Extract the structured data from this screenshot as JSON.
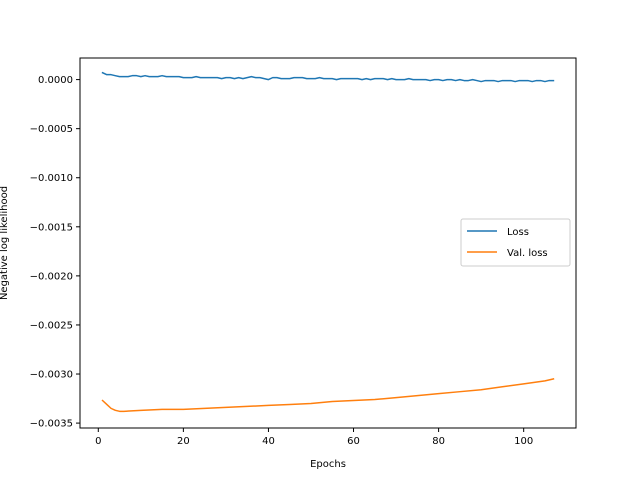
{
  "chart_data": {
    "type": "line",
    "title": "",
    "xlabel": "Epochs",
    "ylabel": "Negative log likelihood",
    "xlim": [
      -4.3,
      112.3
    ],
    "ylim": [
      -0.00355,
      0.00022
    ],
    "xticks": [
      0,
      20,
      40,
      60,
      80,
      100
    ],
    "xtick_labels": [
      "0",
      "20",
      "40",
      "60",
      "80",
      "100"
    ],
    "yticks": [
      0.0,
      -0.0005,
      -0.001,
      -0.0015,
      -0.002,
      -0.0025,
      -0.003,
      -0.0035
    ],
    "ytick_labels": [
      "0.0000",
      "−0.0005",
      "−0.0010",
      "−0.0015",
      "−0.0020",
      "−0.0025",
      "−0.0030",
      "−0.0035"
    ],
    "grid": false,
    "legend": {
      "position": "center-right",
      "entries": [
        "Loss",
        "Val. loss"
      ]
    },
    "series": [
      {
        "name": "Loss",
        "color": "#1f77b4",
        "x": [
          1,
          2,
          3,
          4,
          5,
          6,
          7,
          8,
          9,
          10,
          11,
          12,
          13,
          14,
          15,
          16,
          17,
          18,
          19,
          20,
          21,
          22,
          23,
          24,
          25,
          26,
          27,
          28,
          29,
          30,
          31,
          32,
          33,
          34,
          35,
          36,
          37,
          38,
          39,
          40,
          41,
          42,
          43,
          44,
          45,
          46,
          47,
          48,
          49,
          50,
          51,
          52,
          53,
          54,
          55,
          56,
          57,
          58,
          59,
          60,
          61,
          62,
          63,
          64,
          65,
          66,
          67,
          68,
          69,
          70,
          71,
          72,
          73,
          74,
          75,
          76,
          77,
          78,
          79,
          80,
          81,
          82,
          83,
          84,
          85,
          86,
          87,
          88,
          89,
          90,
          91,
          92,
          93,
          94,
          95,
          96,
          97,
          98,
          99,
          100,
          101,
          102,
          103,
          104,
          105,
          106,
          107
        ],
        "y": [
          7e-05,
          5e-05,
          5e-05,
          4e-05,
          3e-05,
          3e-05,
          3e-05,
          4e-05,
          4e-05,
          3e-05,
          4e-05,
          3e-05,
          3e-05,
          3e-05,
          4e-05,
          3e-05,
          3e-05,
          3e-05,
          3e-05,
          2e-05,
          2e-05,
          2e-05,
          3e-05,
          2e-05,
          2e-05,
          2e-05,
          2e-05,
          2e-05,
          1e-05,
          2e-05,
          2e-05,
          1e-05,
          2e-05,
          1e-05,
          2e-05,
          3e-05,
          2e-05,
          2e-05,
          1e-05,
          0.0,
          2e-05,
          2e-05,
          1e-05,
          1e-05,
          1e-05,
          2e-05,
          2e-05,
          2e-05,
          1e-05,
          1e-05,
          1e-05,
          2e-05,
          1e-05,
          1e-05,
          1e-05,
          0.0,
          1e-05,
          1e-05,
          1e-05,
          1e-05,
          1e-05,
          0.0,
          1e-05,
          0.0,
          1e-05,
          1e-05,
          1e-05,
          0.0,
          1e-05,
          0.0,
          0.0,
          0.0,
          1e-05,
          0.0,
          0.0,
          0.0,
          0.0,
          -1e-05,
          0.0,
          0.0,
          -1e-05,
          0.0,
          0.0,
          -1e-05,
          0.0,
          -1e-05,
          -1e-05,
          0.0,
          -1e-05,
          -2e-05,
          -1e-05,
          -1e-05,
          -1e-05,
          -2e-05,
          -1e-05,
          -1e-05,
          -1e-05,
          -2e-05,
          -1e-05,
          -1e-05,
          -1e-05,
          -2e-05,
          -1e-05,
          -1e-05,
          -2e-05,
          -1e-05,
          -1e-05
        ]
      },
      {
        "name": "Val. loss",
        "color": "#ff7f0e",
        "x": [
          1,
          2,
          3,
          4,
          5,
          6,
          10,
          15,
          20,
          25,
          30,
          35,
          40,
          45,
          50,
          55,
          60,
          65,
          70,
          75,
          80,
          85,
          90,
          95,
          100,
          105,
          107
        ],
        "y": [
          -0.00327,
          -0.00331,
          -0.00335,
          -0.00337,
          -0.00338,
          -0.00338,
          -0.00337,
          -0.00336,
          -0.00336,
          -0.00335,
          -0.00334,
          -0.00333,
          -0.00332,
          -0.00331,
          -0.0033,
          -0.00328,
          -0.00327,
          -0.00326,
          -0.00324,
          -0.00322,
          -0.0032,
          -0.00318,
          -0.00316,
          -0.00313,
          -0.0031,
          -0.00307,
          -0.00305
        ]
      }
    ]
  }
}
